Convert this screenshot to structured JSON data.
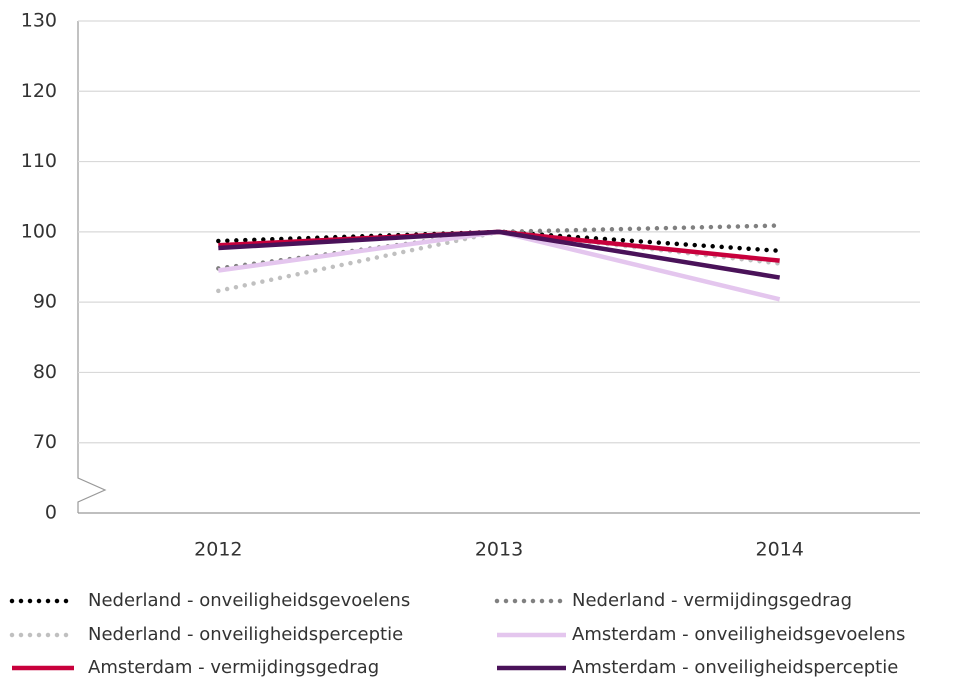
{
  "chart_data": {
    "type": "line",
    "categories": [
      "2012",
      "2013",
      "2014"
    ],
    "ylim": [
      60,
      130
    ],
    "yticks": [
      70,
      80,
      90,
      100,
      110,
      120,
      130
    ],
    "grid": true,
    "y_axis_break_label": 0,
    "series": [
      {
        "name": "Nederland - onveiligheidsgevoelens",
        "color": "#000000",
        "dash": "dotted",
        "values": [
          98.7,
          100,
          97.3
        ]
      },
      {
        "name": "Nederland - vermijdingsgedrag",
        "color": "#808080",
        "dash": "dotted",
        "values": [
          94.8,
          100,
          100.9
        ]
      },
      {
        "name": "Nederland - onveiligheidsperceptie",
        "color": "#c0c0c0",
        "dash": "dotted",
        "values": [
          91.6,
          100,
          95.5
        ]
      },
      {
        "name": "Amsterdam - onveiligheidsgevoelens",
        "color": "#e4c6ee",
        "dash": "solid",
        "values": [
          94.5,
          100,
          90.4
        ]
      },
      {
        "name": "Amsterdam - vermijdingsgedrag",
        "color": "#c8003c",
        "dash": "solid",
        "values": [
          98.1,
          100,
          95.9
        ]
      },
      {
        "name": "Amsterdam - onveiligheidsperceptie",
        "color": "#4a1259",
        "dash": "solid",
        "values": [
          97.7,
          100,
          93.5
        ]
      }
    ]
  }
}
